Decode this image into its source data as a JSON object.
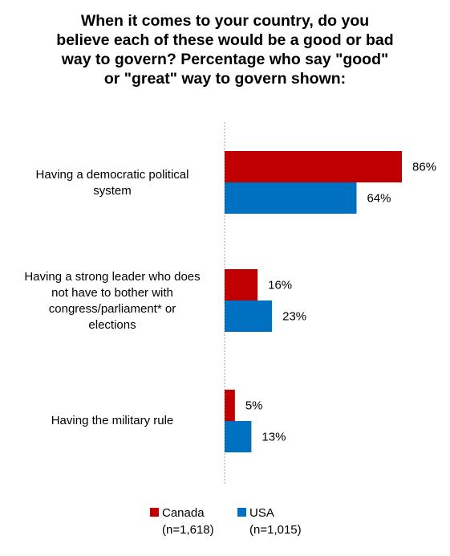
{
  "chart_data": {
    "type": "bar",
    "orientation": "horizontal",
    "title_lines": [
      "When it comes to your country, do you",
      "believe each of these would be a good or bad",
      "way to govern? Percentage who say \"good\"",
      "or \"great\" way to govern shown:"
    ],
    "categories": [
      {
        "lines": [
          "Having a democratic political",
          "system"
        ]
      },
      {
        "lines": [
          "Having a strong leader who does",
          "not have to bother with",
          "congress/parliament* or",
          "elections"
        ]
      },
      {
        "lines": [
          "Having the military rule"
        ]
      }
    ],
    "series": [
      {
        "name": "Canada",
        "sample": "(n=1,618)",
        "color": "#C00000",
        "values": [
          86,
          16,
          5
        ],
        "labels": [
          "86%",
          "16%",
          "5%"
        ]
      },
      {
        "name": "USA",
        "sample": "(n=1,015)",
        "color": "#0070C0",
        "values": [
          64,
          23,
          13
        ],
        "labels": [
          "64%",
          "23%",
          "13%"
        ]
      }
    ],
    "xlim": [
      0,
      100
    ],
    "grid": false,
    "legend_position": "bottom"
  }
}
